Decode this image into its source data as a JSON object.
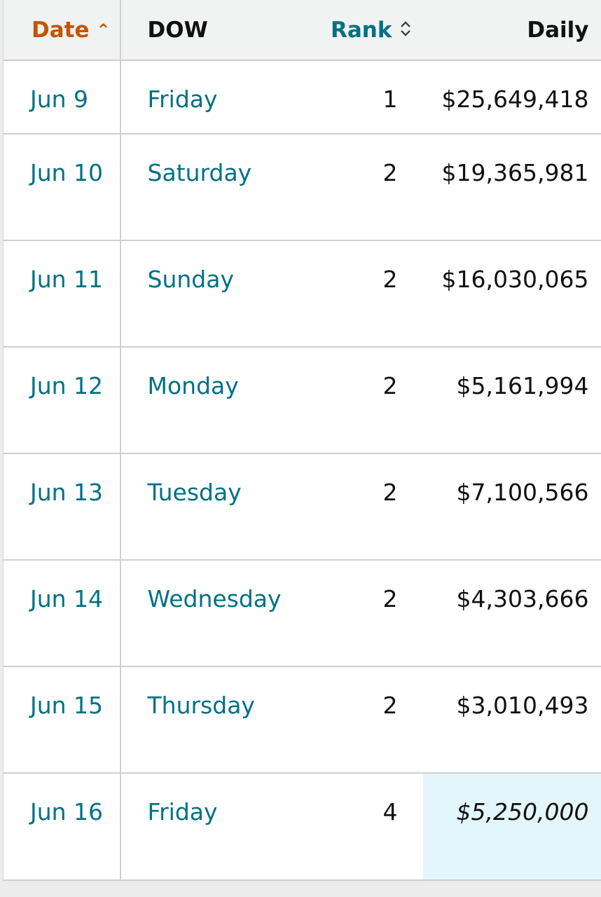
{
  "header": {
    "date": "Date",
    "dow": "DOW",
    "rank": "Rank",
    "daily": "Daily",
    "date_sort_icon": "chevron-up-icon",
    "rank_sort_icon": "sort-up-down-icon"
  },
  "rows": [
    {
      "date": "Jun 9",
      "dow": "Friday",
      "rank": "1",
      "daily": "$25,649,418"
    },
    {
      "date": "Jun 10",
      "dow": "Saturday",
      "rank": "2",
      "daily": "$19,365,981"
    },
    {
      "date": "Jun 11",
      "dow": "Sunday",
      "rank": "2",
      "daily": "$16,030,065"
    },
    {
      "date": "Jun 12",
      "dow": "Monday",
      "rank": "2",
      "daily": "$5,161,994"
    },
    {
      "date": "Jun 13",
      "dow": "Tuesday",
      "rank": "2",
      "daily": "$7,100,566"
    },
    {
      "date": "Jun 14",
      "dow": "Wednesday",
      "rank": "2",
      "daily": "$4,303,666"
    },
    {
      "date": "Jun 15",
      "dow": "Thursday",
      "rank": "2",
      "daily": "$3,010,493"
    },
    {
      "date": "Jun 16",
      "dow": "Friday",
      "rank": "4",
      "daily": "$5,250,000",
      "estimate": true
    }
  ],
  "colors": {
    "active_sort": "#c45500",
    "link": "#007185",
    "estimate_bg": "#e3f6fb"
  }
}
